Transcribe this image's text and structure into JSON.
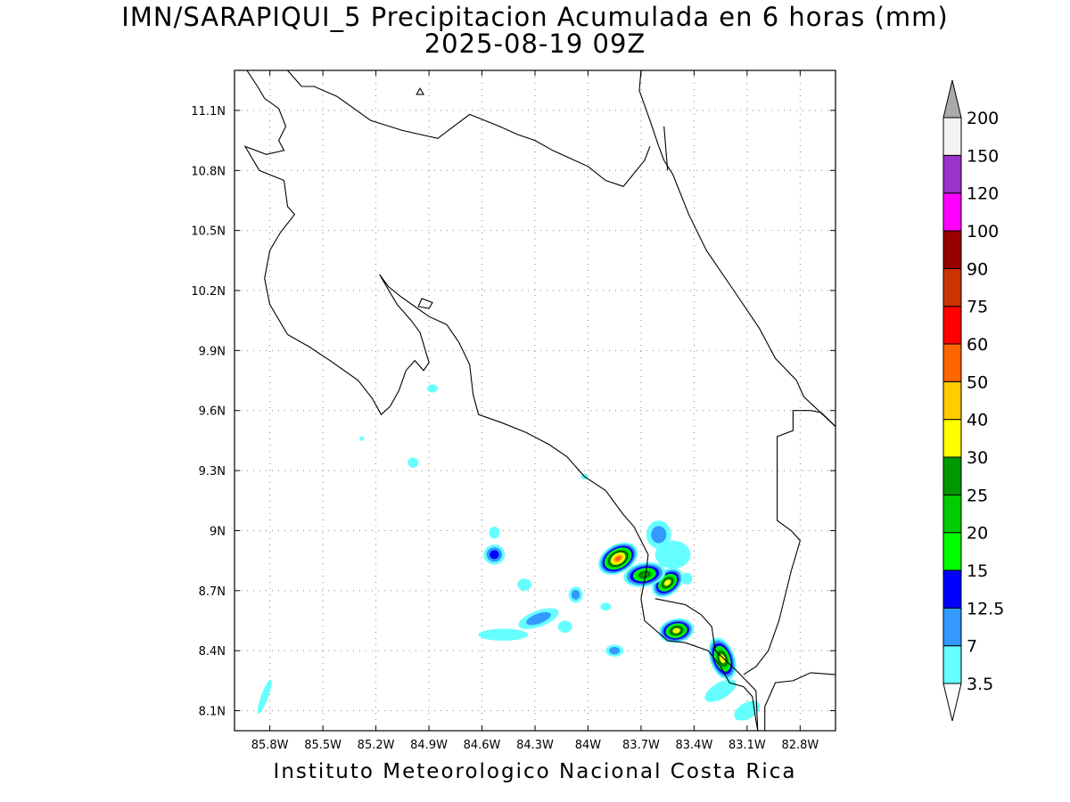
{
  "title": {
    "line1": "IMN/SARAPIQUI_5 Precipitacion Acumulada en 6 horas (mm)",
    "line2": "2025-08-19 09Z"
  },
  "credit": "Instituto Meteorologico Nacional Costa Rica",
  "axes": {
    "lon_range": [
      -86.0,
      -82.6
    ],
    "lat_range": [
      8.0,
      11.3
    ],
    "x_ticks": [
      {
        "value": -85.8,
        "label": "85.8W"
      },
      {
        "value": -85.5,
        "label": "85.5W"
      },
      {
        "value": -85.2,
        "label": "85.2W"
      },
      {
        "value": -84.9,
        "label": "84.9W"
      },
      {
        "value": -84.6,
        "label": "84.6W"
      },
      {
        "value": -84.3,
        "label": "84.3W"
      },
      {
        "value": -84.0,
        "label": "84W"
      },
      {
        "value": -83.7,
        "label": "83.7W"
      },
      {
        "value": -83.4,
        "label": "83.4W"
      },
      {
        "value": -83.1,
        "label": "83.1W"
      },
      {
        "value": -82.8,
        "label": "82.8W"
      }
    ],
    "y_ticks": [
      {
        "value": 8.1,
        "label": "8.1N"
      },
      {
        "value": 8.4,
        "label": "8.4N"
      },
      {
        "value": 8.7,
        "label": "8.7N"
      },
      {
        "value": 9.0,
        "label": "9N"
      },
      {
        "value": 9.3,
        "label": "9.3N"
      },
      {
        "value": 9.6,
        "label": "9.6N"
      },
      {
        "value": 9.9,
        "label": "9.9N"
      },
      {
        "value": 10.2,
        "label": "10.2N"
      },
      {
        "value": 10.5,
        "label": "10.5N"
      },
      {
        "value": 10.8,
        "label": "10.8N"
      },
      {
        "value": 11.1,
        "label": "11.1N"
      }
    ],
    "grid": "dotted"
  },
  "colorbar": {
    "unit": "mm",
    "levels": [
      {
        "label": "3.5",
        "color": "#66ffff"
      },
      {
        "label": "7",
        "color": "#3399ff"
      },
      {
        "label": "12.5",
        "color": "#0000ff"
      },
      {
        "label": "15",
        "color": "#00ff00"
      },
      {
        "label": "20",
        "color": "#00cc00"
      },
      {
        "label": "25",
        "color": "#009900"
      },
      {
        "label": "30",
        "color": "#ffff00"
      },
      {
        "label": "40",
        "color": "#ffcc00"
      },
      {
        "label": "50",
        "color": "#ff6600"
      },
      {
        "label": "60",
        "color": "#ff0000"
      },
      {
        "label": "75",
        "color": "#cc3300"
      },
      {
        "label": "90",
        "color": "#990000"
      },
      {
        "label": "100",
        "color": "#ff00ff"
      },
      {
        "label": "120",
        "color": "#9933cc"
      },
      {
        "label": "150",
        "color": "#f2f2f2"
      },
      {
        "label": "200",
        "color": "#aaaaaa"
      }
    ]
  },
  "coastline": [
    [
      [
        -85.93,
        11.3
      ],
      [
        -85.87,
        11.22
      ],
      [
        -85.83,
        11.16
      ],
      [
        -85.75,
        11.11
      ],
      [
        -85.71,
        11.02
      ],
      [
        -85.75,
        10.95
      ],
      [
        -85.72,
        10.9
      ],
      [
        -85.82,
        10.88
      ],
      [
        -85.94,
        10.92
      ],
      [
        -85.86,
        10.8
      ],
      [
        -85.72,
        10.75
      ],
      [
        -85.7,
        10.62
      ],
      [
        -85.66,
        10.58
      ],
      [
        -85.74,
        10.49
      ],
      [
        -85.8,
        10.4
      ],
      [
        -85.83,
        10.26
      ],
      [
        -85.8,
        10.13
      ],
      [
        -85.7,
        9.98
      ],
      [
        -85.58,
        9.92
      ],
      [
        -85.46,
        9.85
      ],
      [
        -85.3,
        9.75
      ],
      [
        -85.22,
        9.66
      ],
      [
        -85.17,
        9.58
      ],
      [
        -85.12,
        9.62
      ],
      [
        -85.07,
        9.7
      ],
      [
        -85.03,
        9.8
      ],
      [
        -84.98,
        9.85
      ],
      [
        -84.93,
        9.8
      ],
      [
        -84.9,
        9.84
      ],
      [
        -84.95,
        9.99
      ],
      [
        -85.0,
        10.05
      ],
      [
        -85.08,
        10.13
      ],
      [
        -85.12,
        10.19
      ],
      [
        -85.18,
        10.28
      ],
      [
        -85.13,
        10.22
      ],
      [
        -85.06,
        10.17
      ],
      [
        -84.98,
        10.12
      ],
      [
        -84.9,
        10.07
      ],
      [
        -84.8,
        10.03
      ],
      [
        -84.73,
        9.94
      ],
      [
        -84.67,
        9.83
      ],
      [
        -84.65,
        9.68
      ],
      [
        -84.62,
        9.58
      ],
      [
        -84.49,
        9.54
      ],
      [
        -84.35,
        9.49
      ],
      [
        -84.22,
        9.43
      ],
      [
        -84.12,
        9.37
      ],
      [
        -84.02,
        9.27
      ],
      [
        -83.9,
        9.2
      ],
      [
        -83.8,
        9.08
      ],
      [
        -83.74,
        9.02
      ],
      [
        -83.66,
        8.88
      ],
      [
        -83.67,
        8.8
      ],
      [
        -83.7,
        8.66
      ],
      [
        -83.68,
        8.55
      ],
      [
        -83.55,
        8.45
      ],
      [
        -83.45,
        8.44
      ],
      [
        -83.32,
        8.4
      ],
      [
        -83.25,
        8.32
      ],
      [
        -83.2,
        8.24
      ],
      [
        -83.12,
        8.22
      ],
      [
        -83.07,
        8.17
      ],
      [
        -83.05,
        8.05
      ],
      [
        -83.04,
        8.0
      ]
    ],
    [
      [
        -83.0,
        8.0
      ],
      [
        -83.0,
        8.12
      ],
      [
        -82.94,
        8.24
      ],
      [
        -82.84,
        8.25
      ],
      [
        -82.74,
        8.29
      ],
      [
        -82.6,
        8.28
      ]
    ],
    [
      [
        -82.6,
        9.52
      ],
      [
        -82.68,
        9.59
      ],
      [
        -82.74,
        9.6
      ],
      [
        -82.84,
        9.6
      ],
      [
        -82.84,
        9.5
      ],
      [
        -82.93,
        9.47
      ],
      [
        -82.93,
        9.05
      ],
      [
        -82.85,
        9.0
      ],
      [
        -82.8,
        8.95
      ],
      [
        -82.85,
        8.8
      ],
      [
        -82.92,
        8.55
      ],
      [
        -82.98,
        8.4
      ],
      [
        -83.05,
        8.32
      ],
      [
        -83.12,
        8.28
      ]
    ],
    [
      [
        -83.7,
        11.3
      ],
      [
        -83.71,
        11.2
      ],
      [
        -83.65,
        11.05
      ],
      [
        -83.6,
        10.92
      ],
      [
        -83.57,
        10.85
      ],
      [
        -83.52,
        10.78
      ],
      [
        -83.43,
        10.58
      ],
      [
        -83.33,
        10.4
      ],
      [
        -83.16,
        10.18
      ],
      [
        -83.03,
        10.01
      ],
      [
        -82.94,
        9.86
      ],
      [
        -82.82,
        9.75
      ],
      [
        -82.78,
        9.67
      ],
      [
        -82.6,
        9.52
      ]
    ],
    [
      [
        -83.57,
        11.02
      ],
      [
        -83.55,
        10.8
      ]
    ]
  ],
  "borders": [
    [
      [
        -85.7,
        11.3
      ],
      [
        -85.62,
        11.22
      ],
      [
        -85.55,
        11.22
      ],
      [
        -85.42,
        11.17
      ],
      [
        -85.23,
        11.05
      ],
      [
        -85.05,
        11.0
      ],
      [
        -84.85,
        10.96
      ],
      [
        -84.67,
        11.08
      ],
      [
        -84.5,
        11.02
      ],
      [
        -84.4,
        10.98
      ],
      [
        -84.3,
        10.95
      ],
      [
        -84.2,
        10.9
      ],
      [
        -84.1,
        10.86
      ],
      [
        -84.0,
        10.82
      ],
      [
        -83.9,
        10.75
      ],
      [
        -83.8,
        10.72
      ],
      [
        -83.68,
        10.85
      ],
      [
        -83.65,
        10.92
      ]
    ],
    [
      [
        -83.62,
        8.66
      ],
      [
        -83.45,
        8.63
      ],
      [
        -83.36,
        8.58
      ],
      [
        -83.3,
        8.52
      ],
      [
        -83.28,
        8.4
      ],
      [
        -83.16,
        8.3
      ],
      [
        -83.05,
        8.2
      ],
      [
        -83.04,
        8.0
      ]
    ]
  ],
  "islands": [
    [
      [
        -84.97,
        11.18
      ],
      [
        -84.93,
        11.18
      ],
      [
        -84.95,
        11.21
      ],
      [
        -84.97,
        11.18
      ]
    ],
    [
      [
        -84.96,
        10.12
      ],
      [
        -84.9,
        10.11
      ],
      [
        -84.88,
        10.14
      ],
      [
        -84.94,
        10.16
      ],
      [
        -84.96,
        10.12
      ]
    ]
  ],
  "precipitation": [
    {
      "lon": -83.83,
      "lat": 8.86,
      "rx": 0.12,
      "ry": 0.07,
      "rot": -30,
      "level": 9
    },
    {
      "lon": -83.55,
      "lat": 8.74,
      "rx": 0.1,
      "ry": 0.06,
      "rot": -40,
      "level": 7
    },
    {
      "lon": -83.68,
      "lat": 8.78,
      "rx": 0.12,
      "ry": 0.06,
      "rot": -10,
      "level": 6
    },
    {
      "lon": -83.5,
      "lat": 8.5,
      "rx": 0.1,
      "ry": 0.06,
      "rot": -10,
      "level": 7
    },
    {
      "lon": -83.24,
      "lat": 8.36,
      "rx": 0.07,
      "ry": 0.11,
      "rot": -20,
      "level": 7
    },
    {
      "lon": -83.6,
      "lat": 8.98,
      "rx": 0.07,
      "ry": 0.07,
      "rot": 0,
      "level": 2
    },
    {
      "lon": -83.52,
      "lat": 8.88,
      "rx": 0.1,
      "ry": 0.07,
      "rot": 0,
      "level": 1
    },
    {
      "lon": -84.53,
      "lat": 8.88,
      "rx": 0.06,
      "ry": 0.05,
      "rot": 0,
      "level": 3
    },
    {
      "lon": -84.28,
      "lat": 8.56,
      "rx": 0.12,
      "ry": 0.04,
      "rot": -20,
      "level": 2
    },
    {
      "lon": -84.48,
      "lat": 8.48,
      "rx": 0.14,
      "ry": 0.03,
      "rot": 0,
      "level": 1
    },
    {
      "lon": -84.07,
      "lat": 8.68,
      "rx": 0.04,
      "ry": 0.04,
      "rot": 0,
      "level": 2
    },
    {
      "lon": -84.13,
      "lat": 8.52,
      "rx": 0.04,
      "ry": 0.03,
      "rot": 0,
      "level": 1
    },
    {
      "lon": -83.85,
      "lat": 8.4,
      "rx": 0.05,
      "ry": 0.03,
      "rot": 0,
      "level": 2
    },
    {
      "lon": -83.25,
      "lat": 8.2,
      "rx": 0.1,
      "ry": 0.04,
      "rot": -30,
      "level": 1
    },
    {
      "lon": -83.1,
      "lat": 8.1,
      "rx": 0.08,
      "ry": 0.04,
      "rot": -30,
      "level": 1
    },
    {
      "lon": -84.36,
      "lat": 8.73,
      "rx": 0.04,
      "ry": 0.03,
      "rot": 0,
      "level": 1
    },
    {
      "lon": -84.02,
      "lat": 9.27,
      "rx": 0.02,
      "ry": 0.015,
      "rot": 0,
      "level": 1
    },
    {
      "lon": -84.99,
      "lat": 9.34,
      "rx": 0.03,
      "ry": 0.025,
      "rot": 0,
      "level": 1
    },
    {
      "lon": -84.88,
      "lat": 9.71,
      "rx": 0.03,
      "ry": 0.02,
      "rot": 0,
      "level": 1
    },
    {
      "lon": -85.28,
      "lat": 9.46,
      "rx": 0.012,
      "ry": 0.012,
      "rot": 0,
      "level": 1
    },
    {
      "lon": -85.83,
      "lat": 8.17,
      "rx": 0.02,
      "ry": 0.09,
      "rot": 20,
      "level": 1
    },
    {
      "lon": -84.53,
      "lat": 8.99,
      "rx": 0.03,
      "ry": 0.03,
      "rot": 0,
      "level": 1
    },
    {
      "lon": -83.44,
      "lat": 8.76,
      "rx": 0.03,
      "ry": 0.03,
      "rot": 0,
      "level": 1
    },
    {
      "lon": -83.9,
      "lat": 8.62,
      "rx": 0.03,
      "ry": 0.02,
      "rot": 0,
      "level": 1
    }
  ]
}
